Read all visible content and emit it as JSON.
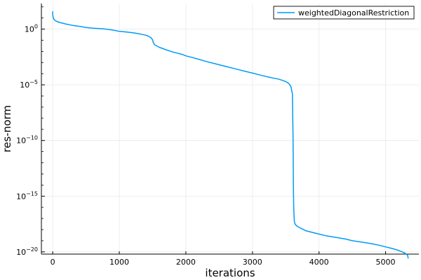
{
  "chart_data": {
    "type": "line",
    "title": "",
    "xlabel": "iterations",
    "ylabel": "res-norm",
    "y_scale": "log10",
    "xlim": [
      -170,
      5500
    ],
    "ylim_exponent": [
      -20.2,
      2.3
    ],
    "grid": true,
    "legend_position": "top-right",
    "x_ticks": [
      0,
      1000,
      2000,
      3000,
      4000,
      5000
    ],
    "x_tick_labels": [
      "0",
      "1000",
      "2000",
      "3000",
      "4000",
      "5000"
    ],
    "y_tick_exponents": [
      0,
      -5,
      -10,
      -15,
      -20
    ],
    "y_tick_base": "10",
    "y_tick_sups": [
      "0",
      "−5",
      "−10",
      "−15",
      "−20"
    ],
    "series": [
      {
        "name": "weightedDiagonalRestriction",
        "color": "#009AF9",
        "x": [
          0,
          0,
          10,
          30,
          60,
          100,
          200,
          300,
          400,
          500,
          600,
          700,
          800,
          900,
          1000,
          1100,
          1200,
          1300,
          1400,
          1450,
          1480,
          1500,
          1510,
          1520,
          1530,
          1600,
          1700,
          1800,
          1900,
          1950,
          2000,
          2100,
          2200,
          2300,
          2400,
          2500,
          2600,
          2700,
          2800,
          2900,
          3000,
          3100,
          3200,
          3300,
          3400,
          3500,
          3550,
          3580,
          3600,
          3610,
          3615,
          3620,
          3625,
          3630,
          3640,
          3660,
          3700,
          3750,
          3800,
          3900,
          4000,
          4100,
          4200,
          4300,
          4400,
          4500,
          4600,
          4700,
          4800,
          4900,
          5000,
          5100,
          5200,
          5250,
          5300,
          5330,
          5340
        ],
        "y_exponent": [
          1.6,
          1.3,
          0.95,
          0.8,
          0.7,
          0.6,
          0.45,
          0.33,
          0.25,
          0.15,
          0.08,
          0.05,
          0.0,
          -0.08,
          -0.2,
          -0.25,
          -0.32,
          -0.42,
          -0.55,
          -0.67,
          -0.8,
          -0.97,
          -1.2,
          -1.3,
          -1.4,
          -1.63,
          -1.85,
          -2.05,
          -2.2,
          -2.28,
          -2.4,
          -2.55,
          -2.72,
          -2.9,
          -3.05,
          -3.2,
          -3.35,
          -3.5,
          -3.65,
          -3.8,
          -3.95,
          -4.1,
          -4.25,
          -4.38,
          -4.5,
          -4.7,
          -4.9,
          -5.2,
          -5.8,
          -10.0,
          -14.0,
          -16.0,
          -16.8,
          -17.3,
          -17.5,
          -17.65,
          -17.8,
          -17.95,
          -18.1,
          -18.25,
          -18.4,
          -18.55,
          -18.65,
          -18.75,
          -18.85,
          -19.0,
          -19.08,
          -19.18,
          -19.28,
          -19.4,
          -19.55,
          -19.7,
          -19.88,
          -20.0,
          -20.15,
          -20.3,
          -20.6
        ]
      }
    ]
  }
}
